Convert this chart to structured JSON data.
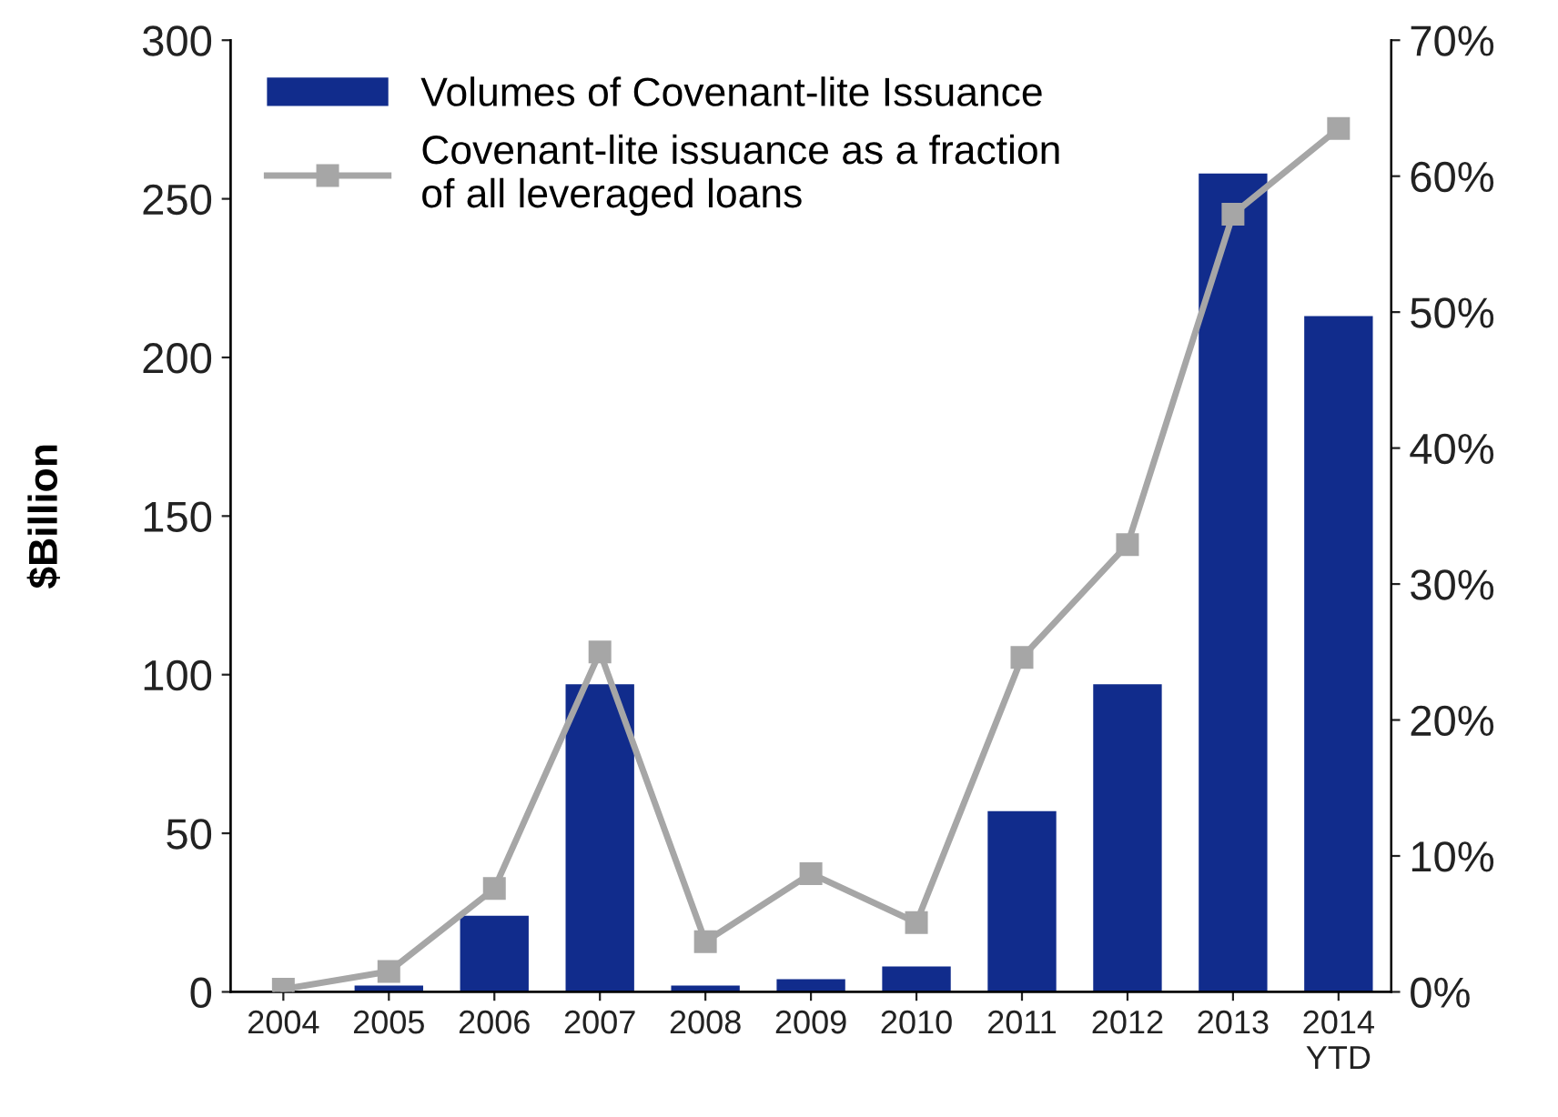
{
  "chart_data": {
    "type": "bar",
    "ylabel": "$Billion",
    "categories": [
      "2004",
      "2005",
      "2006",
      "2007",
      "2008",
      "2009",
      "2010",
      "2011",
      "2012",
      "2013",
      "2014\nYTD"
    ],
    "series": [
      {
        "name": "Volumes of Covenant-lite Issuance",
        "color": "#112c8c",
        "values": [
          null,
          2,
          24,
          97,
          2,
          4,
          8,
          57,
          97,
          258,
          213
        ]
      },
      {
        "name": "Covenant-lite issuance as a fraction\nof all leveraged loans",
        "type": "line",
        "axis": "y2",
        "color": "#a6a6a6",
        "marker": "square",
        "values": [
          0.2,
          1.5,
          7.6,
          25,
          3.7,
          8.7,
          5.1,
          24.6,
          32.9,
          57.2,
          63.5
        ]
      }
    ],
    "ylim": [
      0,
      300
    ],
    "yticks": [
      0,
      50,
      100,
      150,
      200,
      250,
      300
    ],
    "y2lim": [
      0,
      70
    ],
    "y2ticks": [
      {
        "value": 0,
        "label": "0%"
      },
      {
        "value": 10,
        "label": "10%"
      },
      {
        "value": 20,
        "label": "20%"
      },
      {
        "value": 30,
        "label": "30%"
      },
      {
        "value": 40,
        "label": "40%"
      },
      {
        "value": 50,
        "label": "50%"
      },
      {
        "value": 60,
        "label": "60%"
      },
      {
        "value": 70,
        "label": "70%"
      }
    ],
    "legend": "top left",
    "grid": false
  }
}
